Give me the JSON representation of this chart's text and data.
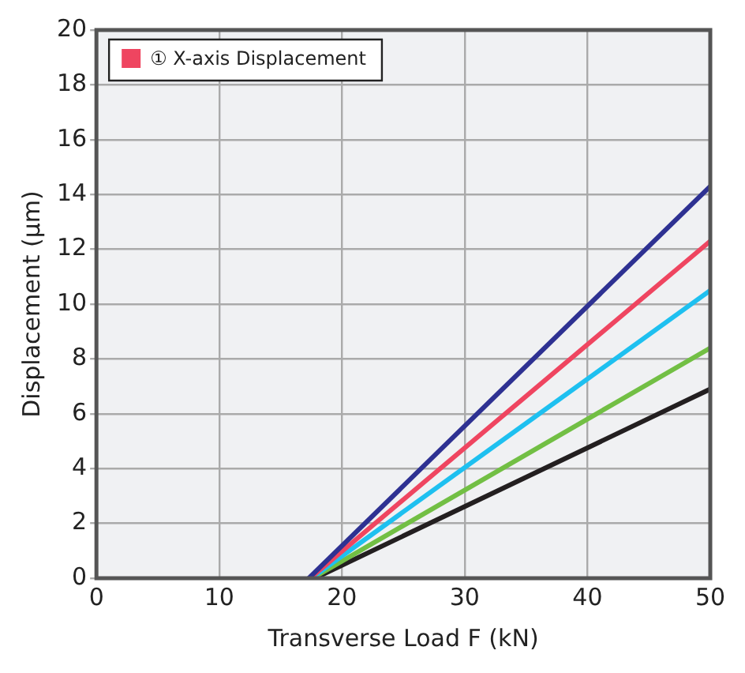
{
  "chart_data": {
    "type": "line",
    "xlabel": "Transverse Load F (kN)",
    "ylabel": "Displacement (μm)",
    "xlim": [
      0,
      50
    ],
    "xticks": [
      0,
      10,
      20,
      30,
      40,
      50
    ],
    "ylim": [
      0,
      20
    ],
    "yticks": [
      0,
      2,
      4,
      6,
      8,
      10,
      12,
      14,
      16,
      18,
      20
    ],
    "grid": true,
    "legend": "top left",
    "marker": "none",
    "line_style": "solid",
    "series": [
      {
        "color": "#2e3192",
        "x": [
          17.3,
          50
        ],
        "values": [
          0,
          14.3
        ]
      },
      {
        "name": "① X-axis Displacement",
        "color": "#ef4560",
        "x": [
          17.4,
          50
        ],
        "values": [
          0,
          12.3
        ]
      },
      {
        "color": "#1ec0f0",
        "x": [
          17.5,
          50
        ],
        "values": [
          0,
          10.5
        ]
      },
      {
        "color": "#72bf44",
        "x": [
          17.6,
          50
        ],
        "values": [
          0,
          8.4
        ]
      },
      {
        "color": "#231f20",
        "x": [
          17.8,
          50
        ],
        "values": [
          0,
          6.9
        ]
      }
    ]
  }
}
